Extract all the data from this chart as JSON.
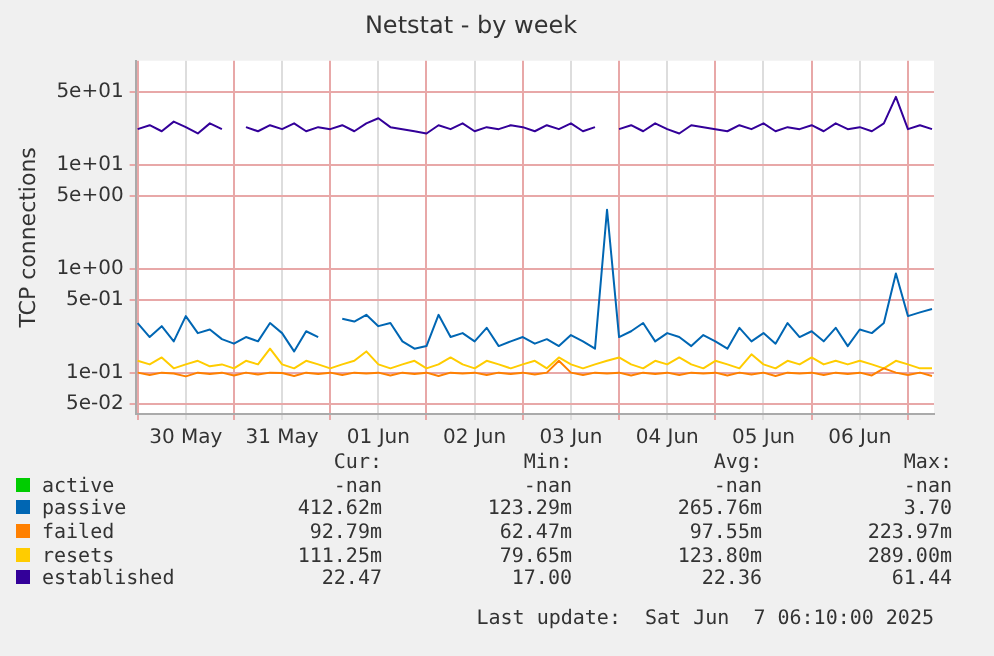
{
  "chart_data": {
    "type": "line",
    "title": "Netstat - by week",
    "ylabel": "TCP connections",
    "log": true,
    "grid": true,
    "legend": "bottom",
    "xlim": [
      "2025-05-29T23:30",
      "2025-06-07T06:30"
    ],
    "xticks": [
      {
        "value": "2025-05-30T00:00",
        "label": null
      },
      {
        "value": "2025-05-30T12:00",
        "label": "30 May"
      },
      {
        "value": "2025-05-31T00:00",
        "label": null
      },
      {
        "value": "2025-05-31T12:00",
        "label": "31 May"
      },
      {
        "value": "2025-06-01T00:00",
        "label": null
      },
      {
        "value": "2025-06-01T12:00",
        "label": "01 Jun"
      },
      {
        "value": "2025-06-02T00:00",
        "label": null
      },
      {
        "value": "2025-06-02T12:00",
        "label": "02 Jun"
      },
      {
        "value": "2025-06-03T00:00",
        "label": null
      },
      {
        "value": "2025-06-03T12:00",
        "label": "03 Jun"
      },
      {
        "value": "2025-06-04T00:00",
        "label": null
      },
      {
        "value": "2025-06-04T12:00",
        "label": "04 Jun"
      },
      {
        "value": "2025-06-05T00:00",
        "label": null
      },
      {
        "value": "2025-06-05T12:00",
        "label": "05 Jun"
      },
      {
        "value": "2025-06-06T00:00",
        "label": null
      },
      {
        "value": "2025-06-06T12:00",
        "label": "06 Jun"
      },
      {
        "value": "2025-06-07T00:00",
        "label": null
      }
    ],
    "ylim": [
      0.04,
      100
    ],
    "yticks": [
      {
        "value": 0.05,
        "label": "5e-02"
      },
      {
        "value": 0.1,
        "label": "1e-01"
      },
      {
        "value": 0.5,
        "label": "5e-01"
      },
      {
        "value": 1,
        "label": "1e+00"
      },
      {
        "value": 5,
        "label": "5e+00"
      },
      {
        "value": 10,
        "label": "1e+01"
      },
      {
        "value": 50,
        "label": "5e+01"
      }
    ],
    "x": [
      "2025-05-30T00:00",
      "2025-05-30T03:00",
      "2025-05-30T06:00",
      "2025-05-30T09:00",
      "2025-05-30T12:00",
      "2025-05-30T15:00",
      "2025-05-30T18:00",
      "2025-05-30T21:00",
      "2025-05-31T00:00",
      "2025-05-31T03:00",
      "2025-05-31T06:00",
      "2025-05-31T09:00",
      "2025-05-31T12:00",
      "2025-05-31T15:00",
      "2025-05-31T18:00",
      "2025-05-31T21:00",
      "2025-06-01T00:00",
      "2025-06-01T03:00",
      "2025-06-01T06:00",
      "2025-06-01T09:00",
      "2025-06-01T12:00",
      "2025-06-01T15:00",
      "2025-06-01T18:00",
      "2025-06-01T21:00",
      "2025-06-02T00:00",
      "2025-06-02T03:00",
      "2025-06-02T06:00",
      "2025-06-02T09:00",
      "2025-06-02T12:00",
      "2025-06-02T15:00",
      "2025-06-02T18:00",
      "2025-06-02T21:00",
      "2025-06-03T00:00",
      "2025-06-03T03:00",
      "2025-06-03T06:00",
      "2025-06-03T09:00",
      "2025-06-03T12:00",
      "2025-06-03T15:00",
      "2025-06-03T18:00",
      "2025-06-03T21:00",
      "2025-06-04T00:00",
      "2025-06-04T03:00",
      "2025-06-04T06:00",
      "2025-06-04T09:00",
      "2025-06-04T12:00",
      "2025-06-04T15:00",
      "2025-06-04T18:00",
      "2025-06-04T21:00",
      "2025-06-05T00:00",
      "2025-06-05T03:00",
      "2025-06-05T06:00",
      "2025-06-05T09:00",
      "2025-06-05T12:00",
      "2025-06-05T15:00",
      "2025-06-05T18:00",
      "2025-06-05T21:00",
      "2025-06-06T00:00",
      "2025-06-06T03:00",
      "2025-06-06T06:00",
      "2025-06-06T09:00",
      "2025-06-06T12:00",
      "2025-06-06T15:00",
      "2025-06-06T18:00",
      "2025-06-06T21:00",
      "2025-06-07T00:00",
      "2025-06-07T03:00",
      "2025-06-07T06:00"
    ],
    "series": [
      {
        "name": "active",
        "color": "#00cc00",
        "values": [
          null,
          null,
          null,
          null,
          null,
          null,
          null,
          null,
          null,
          null,
          null,
          null,
          null,
          null,
          null,
          null,
          null,
          null,
          null,
          null,
          null,
          null,
          null,
          null,
          null,
          null,
          null,
          null,
          null,
          null,
          null,
          null,
          null,
          null,
          null,
          null,
          null,
          null,
          null,
          null,
          null,
          null,
          null,
          null,
          null,
          null,
          null,
          null,
          null,
          null,
          null,
          null,
          null,
          null,
          null,
          null,
          null,
          null,
          null,
          null,
          null,
          null,
          null,
          null,
          null,
          null,
          null
        ]
      },
      {
        "name": "passive",
        "color": "#0066b3",
        "values": [
          0.3,
          0.22,
          0.28,
          0.2,
          0.35,
          0.24,
          0.26,
          0.21,
          0.19,
          0.22,
          0.2,
          0.3,
          0.24,
          0.16,
          0.25,
          0.22,
          null,
          0.33,
          0.31,
          0.36,
          0.28,
          0.3,
          0.2,
          0.17,
          0.18,
          0.36,
          0.22,
          0.24,
          0.2,
          0.27,
          0.18,
          0.2,
          0.22,
          0.19,
          0.21,
          0.18,
          0.23,
          0.2,
          0.17,
          3.7,
          0.22,
          0.25,
          0.3,
          0.2,
          0.24,
          0.22,
          0.18,
          0.23,
          0.2,
          0.17,
          0.27,
          0.2,
          0.24,
          0.19,
          0.3,
          0.22,
          0.25,
          0.2,
          0.27,
          0.18,
          0.26,
          0.24,
          0.3,
          0.9,
          0.35,
          0.38,
          0.41
        ]
      },
      {
        "name": "failed",
        "color": "#ff8000",
        "values": [
          0.1,
          0.095,
          0.1,
          0.098,
          0.092,
          0.1,
          0.097,
          0.1,
          0.094,
          0.1,
          0.096,
          0.1,
          0.099,
          0.093,
          0.1,
          0.097,
          0.1,
          0.095,
          0.1,
          0.098,
          0.1,
          0.094,
          0.1,
          0.097,
          0.1,
          0.093,
          0.1,
          0.098,
          0.1,
          0.095,
          0.1,
          0.097,
          0.1,
          0.096,
          0.1,
          0.13,
          0.1,
          0.095,
          0.1,
          0.098,
          0.1,
          0.094,
          0.1,
          0.097,
          0.1,
          0.095,
          0.1,
          0.098,
          0.1,
          0.094,
          0.1,
          0.096,
          0.1,
          0.093,
          0.1,
          0.098,
          0.1,
          0.095,
          0.1,
          0.097,
          0.1,
          0.094,
          0.11,
          0.1,
          0.095,
          0.1,
          0.093
        ]
      },
      {
        "name": "resets",
        "color": "#ffcc00",
        "values": [
          0.13,
          0.12,
          0.14,
          0.11,
          0.12,
          0.13,
          0.115,
          0.12,
          0.11,
          0.13,
          0.12,
          0.17,
          0.12,
          0.11,
          0.13,
          0.12,
          0.11,
          0.12,
          0.13,
          0.16,
          0.12,
          0.11,
          0.12,
          0.13,
          0.11,
          0.12,
          0.14,
          0.12,
          0.11,
          0.13,
          0.12,
          0.11,
          0.12,
          0.13,
          0.11,
          0.14,
          0.12,
          0.11,
          0.12,
          0.13,
          0.14,
          0.12,
          0.11,
          0.13,
          0.12,
          0.14,
          0.12,
          0.11,
          0.13,
          0.12,
          0.11,
          0.15,
          0.12,
          0.11,
          0.13,
          0.12,
          0.14,
          0.12,
          0.13,
          0.12,
          0.13,
          0.12,
          0.11,
          0.13,
          0.12,
          0.11,
          0.11
        ]
      },
      {
        "name": "established",
        "color": "#330099",
        "values": [
          22,
          24,
          21,
          26,
          23,
          20,
          25,
          22,
          null,
          23,
          21,
          24,
          22,
          25,
          21,
          23,
          22,
          24,
          21,
          25,
          28,
          23,
          22,
          21,
          20,
          24,
          22,
          25,
          21,
          23,
          22,
          24,
          23,
          21,
          24,
          22,
          25,
          21,
          23,
          null,
          22,
          24,
          21,
          25,
          22,
          20,
          24,
          23,
          22,
          21,
          24,
          22,
          25,
          21,
          23,
          22,
          24,
          21,
          25,
          22,
          23,
          21,
          25,
          45,
          22,
          24,
          22
        ]
      }
    ],
    "annotations": [
      "Cur:",
      "Min:",
      "Avg:",
      "Max:",
      "-nan",
      "-nan",
      "-nan",
      "-nan",
      "412.62m",
      "123.29m",
      "265.76m",
      "3.70",
      "92.79m",
      "62.47m",
      "97.55m",
      "223.97m",
      "111.25m",
      "79.65m",
      "123.80m",
      "289.00m",
      "22.47",
      "17.00",
      "22.36",
      "61.44",
      "Last update:  Sat Jun  7 06:10:00 2025"
    ]
  }
}
